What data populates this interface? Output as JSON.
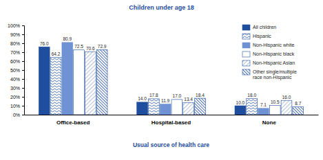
{
  "chart_data": {
    "type": "bar",
    "title": "Children under age 18",
    "x_label": "Usual source of health care",
    "categories": [
      "Office-based",
      "Hospital-based",
      "None"
    ],
    "series": [
      {
        "name": "All children",
        "color": "#1f4e9e",
        "values": [
          76.0,
          14.0,
          10.0
        ],
        "value_labels": [
          "76.0",
          "14.0",
          "10.0"
        ]
      },
      {
        "name": "Hispanic",
        "color": "#1f4e9e",
        "values": [
          64.2,
          17.8,
          18.0
        ],
        "value_labels": [
          "64.2",
          "17.8",
          "18.0"
        ]
      },
      {
        "name": "Non-Hispanic white",
        "color": "#6f92d4",
        "values": [
          80.9,
          11.9,
          7.1
        ],
        "value_labels": [
          "80.9",
          "11.9",
          "7.1"
        ]
      },
      {
        "name": "Non-Hispanic black",
        "color": "#1f4e9e",
        "values": [
          72.5,
          17.0,
          10.5
        ],
        "value_labels": [
          "72.5",
          "17.0",
          "10.5"
        ]
      },
      {
        "name": "Non-Hispanic Asian",
        "color": "#1f4e9e",
        "values": [
          70.6,
          13.4,
          16.0
        ],
        "value_labels": [
          "70.6",
          "13.4",
          "16.0"
        ]
      },
      {
        "name": "Other single/multiple race non-Hispanic",
        "color": "#1f4e9e",
        "values": [
          72.9,
          18.4,
          8.7
        ],
        "value_labels": [
          "72.9",
          "18.4",
          "8.7"
        ]
      }
    ],
    "ylim": [
      0,
      100
    ],
    "yticks": [
      {
        "value": 0,
        "label": "0%"
      },
      {
        "value": 10,
        "label": "10%"
      },
      {
        "value": 20,
        "label": "20%"
      },
      {
        "value": 30,
        "label": "30%"
      },
      {
        "value": 40,
        "label": "40%"
      },
      {
        "value": 50,
        "label": "50%"
      },
      {
        "value": 60,
        "label": "60%"
      },
      {
        "value": 70,
        "label": "70%"
      },
      {
        "value": 80,
        "label": "80%"
      },
      {
        "value": 90,
        "label": "90%"
      },
      {
        "value": 100,
        "label": "100%"
      }
    ],
    "grid": false,
    "legend": "upper right",
    "data_labels": true
  }
}
